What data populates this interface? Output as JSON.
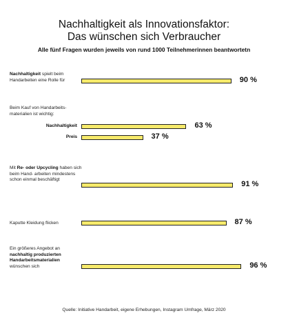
{
  "chart_data": {
    "type": "bar",
    "title_line1": "Nachhaltigkeit als Innovationsfaktor:",
    "title_line2": "Das wünschen sich Verbraucher",
    "subtitle": "Alle fünf Fragen wurden jeweils von rund 1000 Teilnehmerinnen beantwortetn",
    "source": "Quelle: Initiative Handarbeit, eigene Erhebungen, Instagram Umfrage, März 2020",
    "unit": "%",
    "xlim": [
      0,
      100
    ],
    "groups": [
      {
        "label_parts": [
          {
            "text": "Nachhaltigkeit",
            "bold": true
          },
          {
            "text": " spielt beim Handarbeiten eine Rolle für",
            "bold": false
          }
        ],
        "bars": [
          {
            "sublabel": "",
            "value": 90,
            "value_label": "90 %"
          }
        ]
      },
      {
        "label_parts": [
          {
            "text": "Beim Kauf von Handarbeits- materialien ist wichtig:",
            "bold": false
          }
        ],
        "bars": [
          {
            "sublabel": "Nachhaltigkeit",
            "value": 63,
            "value_label": "63 %"
          },
          {
            "sublabel": "Preis",
            "value": 37,
            "value_label": "37 %"
          }
        ]
      },
      {
        "label_parts": [
          {
            "text": "Mit ",
            "bold": false
          },
          {
            "text": "Re- oder Upcycling",
            "bold": true
          },
          {
            "text": " haben sich beim Hand- arbeiten mindestens schon einmal beschäftigt",
            "bold": false
          }
        ],
        "bars": [
          {
            "sublabel": "",
            "value": 91,
            "value_label": "91 %"
          }
        ]
      },
      {
        "label_parts": [
          {
            "text": "Kaputte Kleidung flicken",
            "bold": false
          }
        ],
        "bars": [
          {
            "sublabel": "",
            "value": 87,
            "value_label": "87 %"
          }
        ]
      },
      {
        "label_parts": [
          {
            "text": "Ein größeres Angebot an ",
            "bold": false
          },
          {
            "text": "nachhaltig produzierten Handarbeitsmaterialien",
            "bold": true
          },
          {
            "text": " wünschen sich",
            "bold": false
          }
        ],
        "bars": [
          {
            "sublabel": "",
            "value": 96,
            "value_label": "96 %"
          }
        ]
      }
    ],
    "colors": {
      "bar": "#f6ea6b",
      "bar_border": "#222222"
    }
  }
}
